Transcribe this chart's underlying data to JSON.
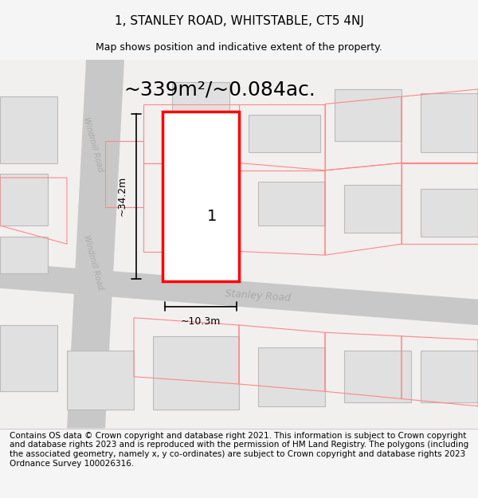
{
  "title": "1, STANLEY ROAD, WHITSTABLE, CT5 4NJ",
  "subtitle": "Map shows position and indicative extent of the property.",
  "footer": "Contains OS data © Crown copyright and database right 2021. This information is subject to Crown copyright and database rights 2023 and is reproduced with the permission of HM Land Registry. The polygons (including the associated geometry, namely x, y co-ordinates) are subject to Crown copyright and database rights 2023 Ordnance Survey 100026316.",
  "area_text": "~339m²/~0.084ac.",
  "height_label": "~34.2m",
  "width_label": "~10.3m",
  "property_number": "1",
  "road_label_bottom": "Stanley Road",
  "road_label_left_top": "Windmill Road",
  "road_label_left_bottom": "Windmill Road",
  "bg_color": "#f5f5f5",
  "map_bg": "#f0eeee",
  "road_color": "#d0d0d0",
  "property_outline_color": "#ff0000",
  "property_fill": "#ffffff",
  "building_fill": "#e0e0e0",
  "building_stroke": "#c8c8c8",
  "title_fontsize": 11,
  "subtitle_fontsize": 9,
  "footer_fontsize": 7.5
}
